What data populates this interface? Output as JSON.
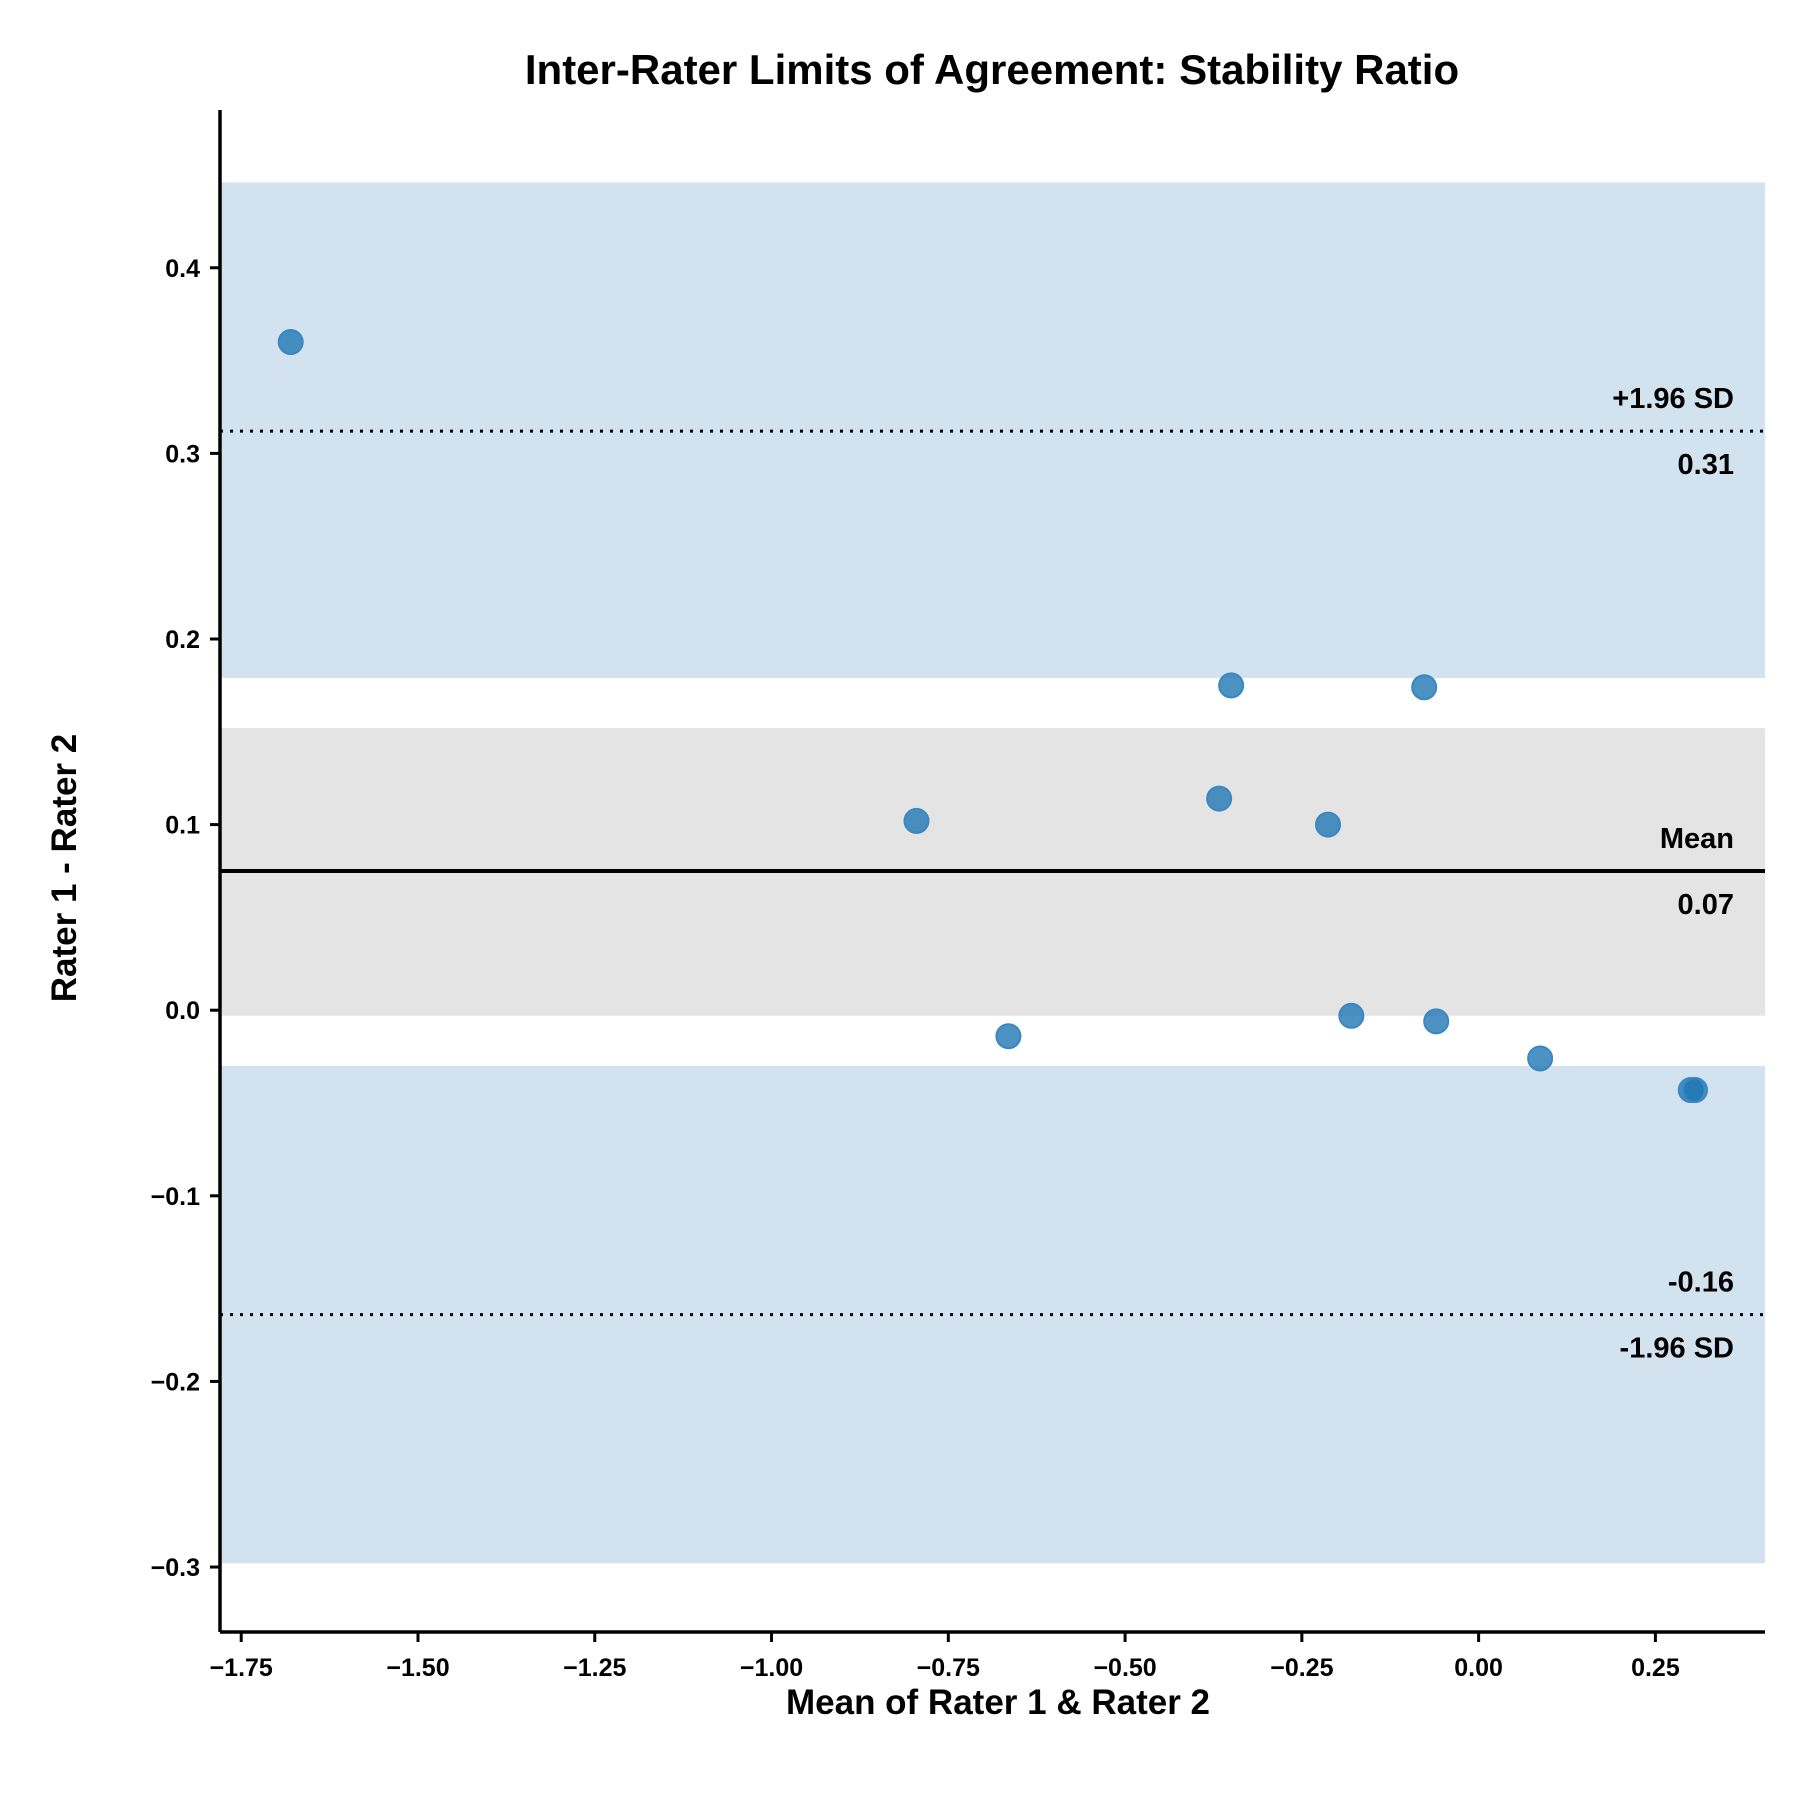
{
  "chart_data": {
    "type": "scatter",
    "title": "Inter-Rater Limits of Agreement: Stability Ratio",
    "xlabel": "Mean of Rater 1 & Rater 2",
    "ylabel": "Rater 1 - Rater 2",
    "xlim": [
      -1.78,
      0.405
    ],
    "ylim": [
      -0.335,
      0.485
    ],
    "x_ticks": [
      -1.75,
      -1.5,
      -1.25,
      -1.0,
      -0.75,
      -0.5,
      -0.25,
      0.0,
      0.25
    ],
    "x_tick_labels": [
      "−1.75",
      "−1.50",
      "−1.25",
      "−1.00",
      "−0.75",
      "−0.50",
      "−0.25",
      "0.00",
      "0.25"
    ],
    "y_ticks": [
      -0.3,
      -0.2,
      -0.1,
      0.0,
      0.1,
      0.2,
      0.3,
      0.4
    ],
    "y_tick_labels": [
      "−0.3",
      "−0.2",
      "−0.1",
      "0.0",
      "0.1",
      "0.2",
      "0.3",
      "0.4"
    ],
    "grid": false,
    "points": [
      {
        "x": -1.68,
        "y": 0.36
      },
      {
        "x": -0.795,
        "y": 0.102
      },
      {
        "x": -0.665,
        "y": -0.014
      },
      {
        "x": -0.367,
        "y": 0.114
      },
      {
        "x": -0.35,
        "y": 0.175
      },
      {
        "x": -0.213,
        "y": 0.1
      },
      {
        "x": -0.18,
        "y": -0.003
      },
      {
        "x": -0.077,
        "y": 0.174
      },
      {
        "x": -0.06,
        "y": -0.006
      },
      {
        "x": 0.087,
        "y": -0.026
      },
      {
        "x": 0.3,
        "y": -0.043
      },
      {
        "x": 0.306,
        "y": -0.043
      }
    ],
    "mean_line": {
      "value": 0.075,
      "label": "Mean",
      "value_label": "0.07"
    },
    "upper_loa": {
      "value": 0.312,
      "label": "+1.96 SD",
      "value_label": "0.31"
    },
    "lower_loa": {
      "value": -0.164,
      "label": "-1.96 SD",
      "value_label": "-0.16"
    },
    "bands": [
      {
        "name": "upper-loa-ci-band",
        "y0": 0.179,
        "y1": 0.446,
        "color": "#d2e3ef"
      },
      {
        "name": "mean-ci-band",
        "y0": -0.003,
        "y1": 0.152,
        "color": "#e4e4e4"
      },
      {
        "name": "lower-loa-ci-band",
        "y0": -0.298,
        "y1": -0.03,
        "color": "#d2e3ef"
      }
    ],
    "point_color": "#1f77b4",
    "point_edge_color": "#3a87c2"
  }
}
